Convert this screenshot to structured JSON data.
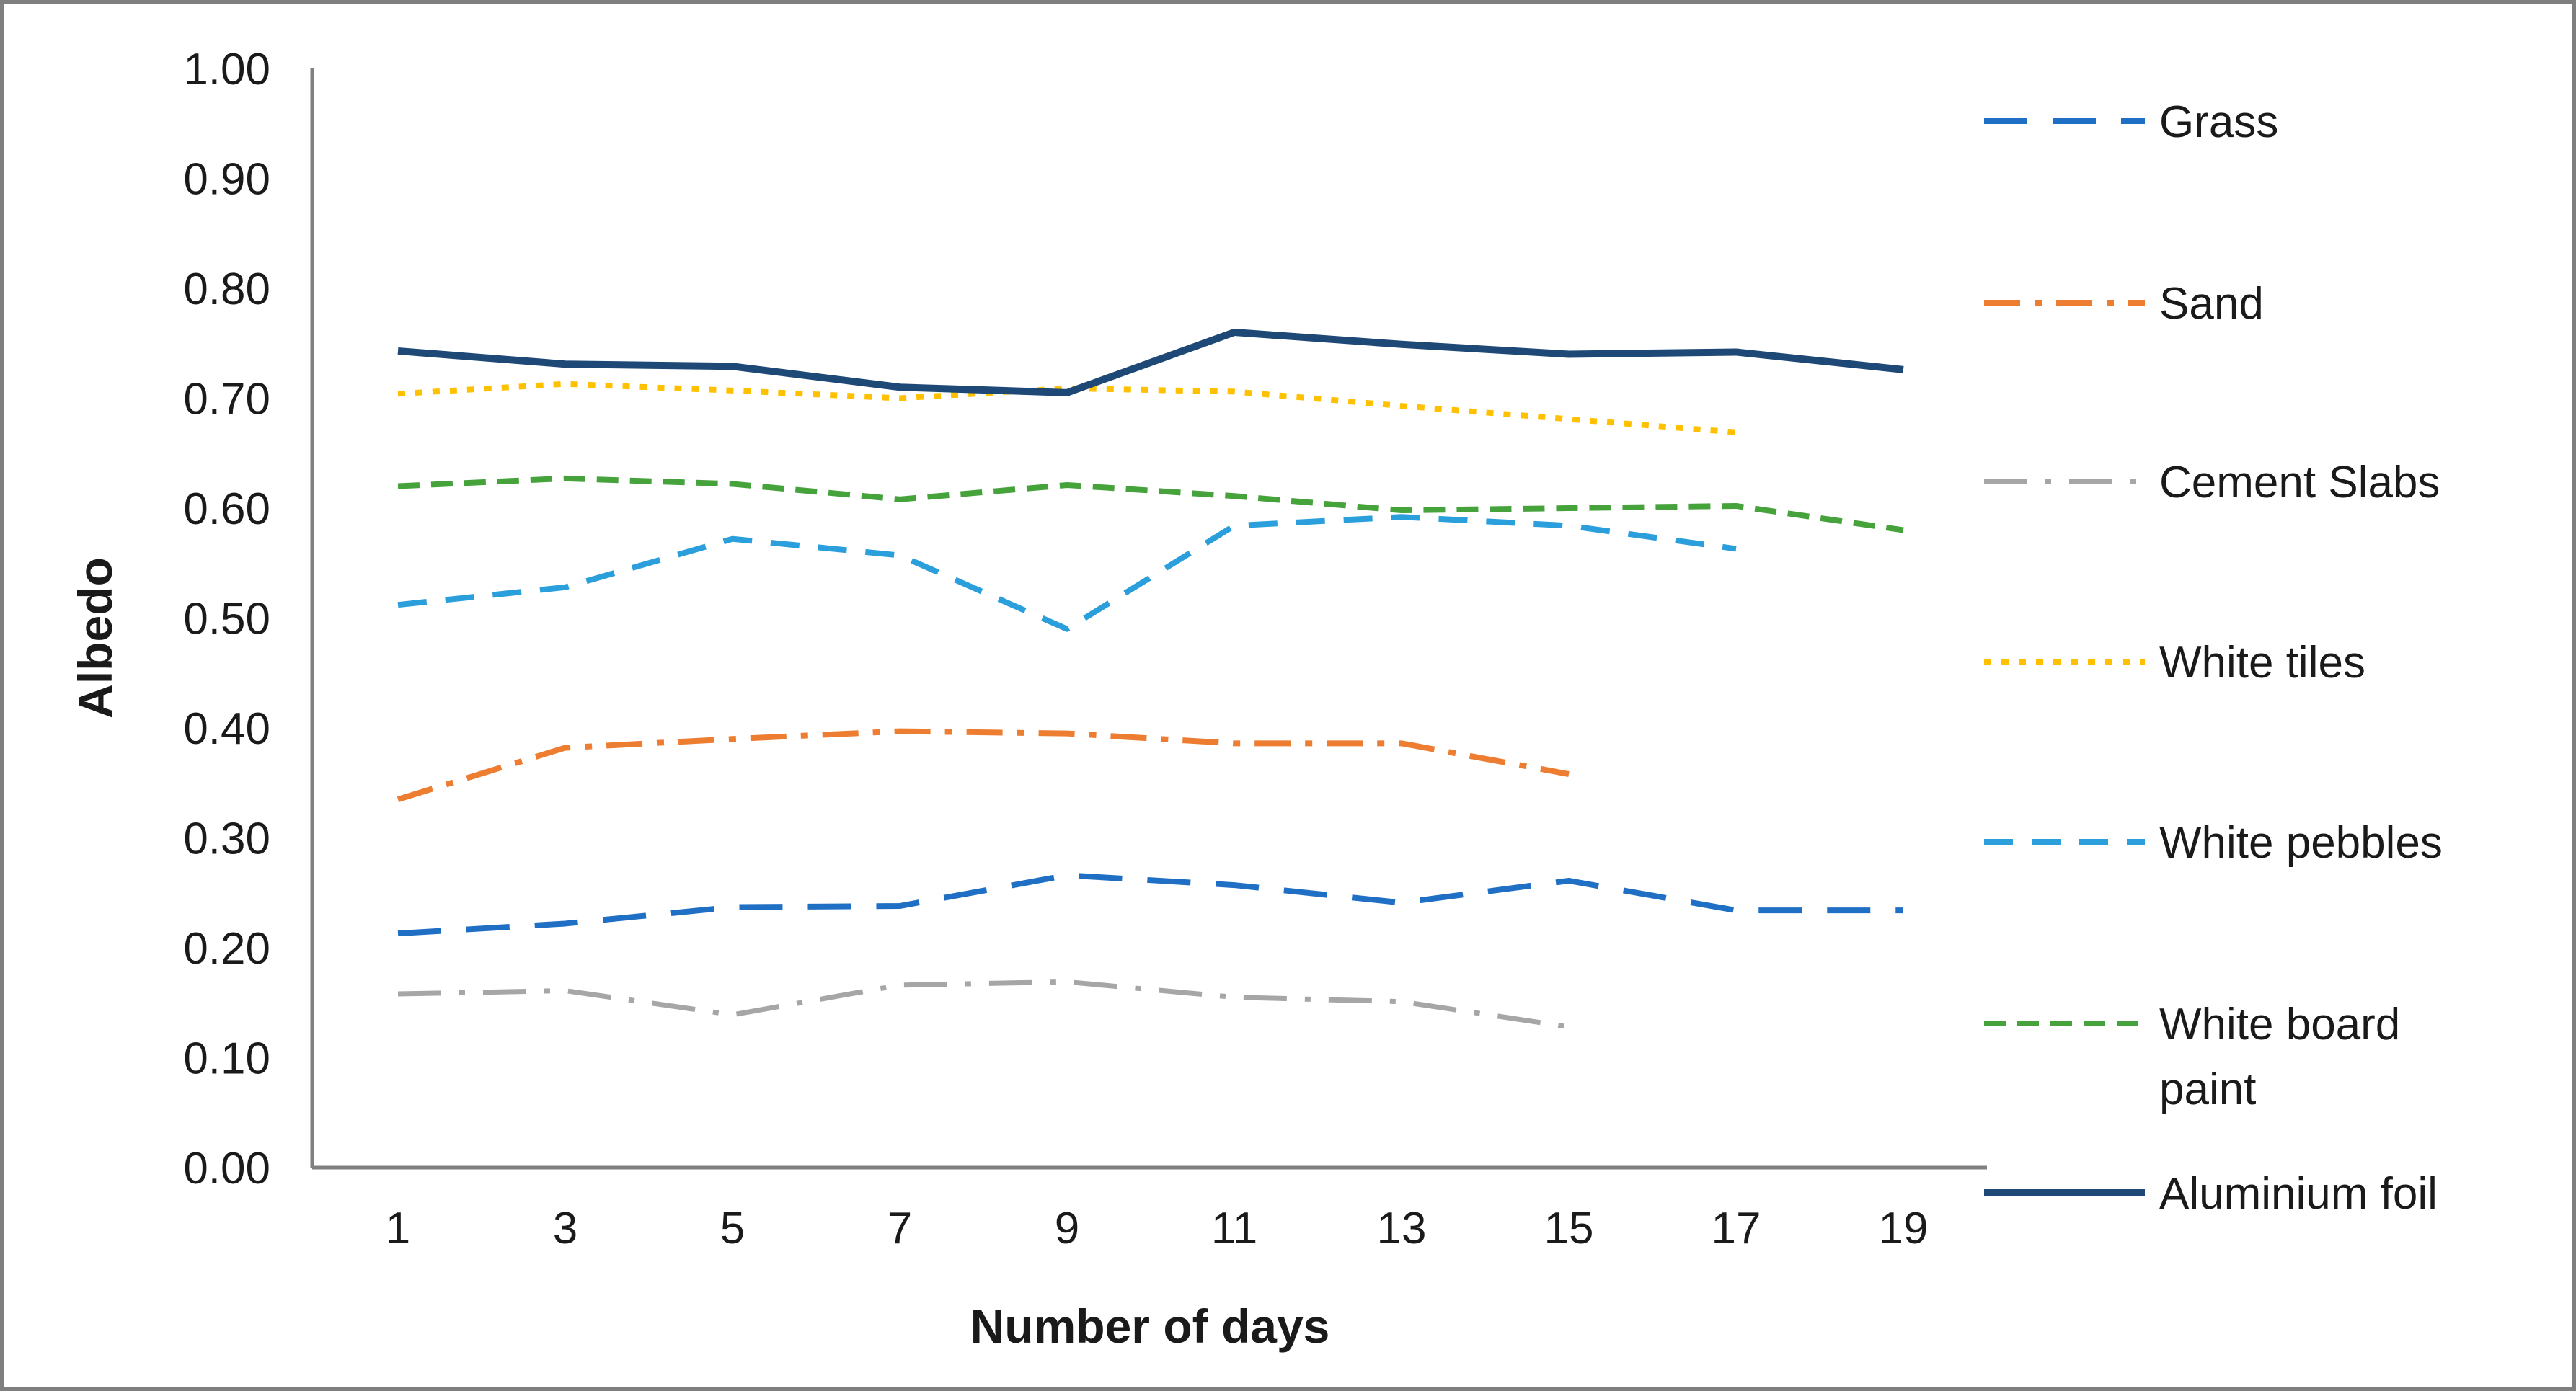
{
  "chart_data": {
    "type": "line",
    "title": "",
    "xlabel": "Number of days",
    "ylabel": "Albedo",
    "ylim": [
      0.0,
      1.0
    ],
    "ytick_step": 0.1,
    "y_tick_labels": [
      "0.00",
      "0.10",
      "0.20",
      "0.30",
      "0.40",
      "0.50",
      "0.60",
      "0.70",
      "0.80",
      "0.90",
      "1.00"
    ],
    "categories": [
      1,
      3,
      5,
      7,
      9,
      11,
      13,
      15,
      17,
      19
    ],
    "grid": false,
    "legend_position": "right",
    "axis_color": "#808080",
    "text_color": "#1a1a1a",
    "series": [
      {
        "name": "Grass",
        "label_lines": [
          "Grass"
        ],
        "color": "#1F6FC4",
        "dash": "60 35",
        "width": 8,
        "values": [
          0.213,
          0.222,
          0.237,
          0.238,
          0.266,
          0.257,
          0.241,
          0.261,
          0.234,
          0.234
        ]
      },
      {
        "name": "Sand",
        "label_lines": [
          "Sand"
        ],
        "color": "#ED7D31",
        "dash": "50 20 10 20",
        "width": 8,
        "values": [
          0.335,
          0.382,
          0.39,
          0.397,
          0.395,
          0.386,
          0.386,
          0.358,
          null,
          null
        ]
      },
      {
        "name": "Cement Slabs",
        "label_lines": [
          "Cement Slabs"
        ],
        "color": "#A6A6A6",
        "dash": "60 25 8 25",
        "width": 7,
        "values": [
          0.158,
          0.161,
          0.139,
          0.166,
          0.169,
          0.155,
          0.151,
          0.128,
          null,
          null
        ]
      },
      {
        "name": "White tiles",
        "label_lines": [
          "White tiles"
        ],
        "color": "#FFC000",
        "dash": "10 14",
        "width": 8,
        "values": [
          0.704,
          0.713,
          0.707,
          0.7,
          0.709,
          0.706,
          0.693,
          0.681,
          0.669,
          null
        ]
      },
      {
        "name": "White pebbles",
        "label_lines": [
          "White pebbles"
        ],
        "color": "#2B9FDC",
        "dash": "40 26",
        "width": 8,
        "values": [
          0.512,
          0.528,
          0.572,
          0.557,
          0.49,
          0.584,
          0.592,
          0.584,
          0.563,
          null
        ]
      },
      {
        "name": "White board paint",
        "label_lines": [
          "White board",
          "paint"
        ],
        "color": "#46A33C",
        "dash": "30 16",
        "width": 8,
        "values": [
          0.62,
          0.627,
          0.622,
          0.608,
          0.621,
          0.611,
          0.598,
          0.6,
          0.602,
          0.58
        ]
      },
      {
        "name": "Aluminium foil",
        "label_lines": [
          "Aluminium foil"
        ],
        "color": "#1E4876",
        "dash": "",
        "width": 10,
        "values": [
          0.743,
          0.731,
          0.729,
          0.71,
          0.705,
          0.76,
          0.749,
          0.74,
          0.742,
          0.726
        ]
      }
    ]
  },
  "frame": {
    "border_color": "#7f7f7f",
    "background": "#ffffff"
  }
}
